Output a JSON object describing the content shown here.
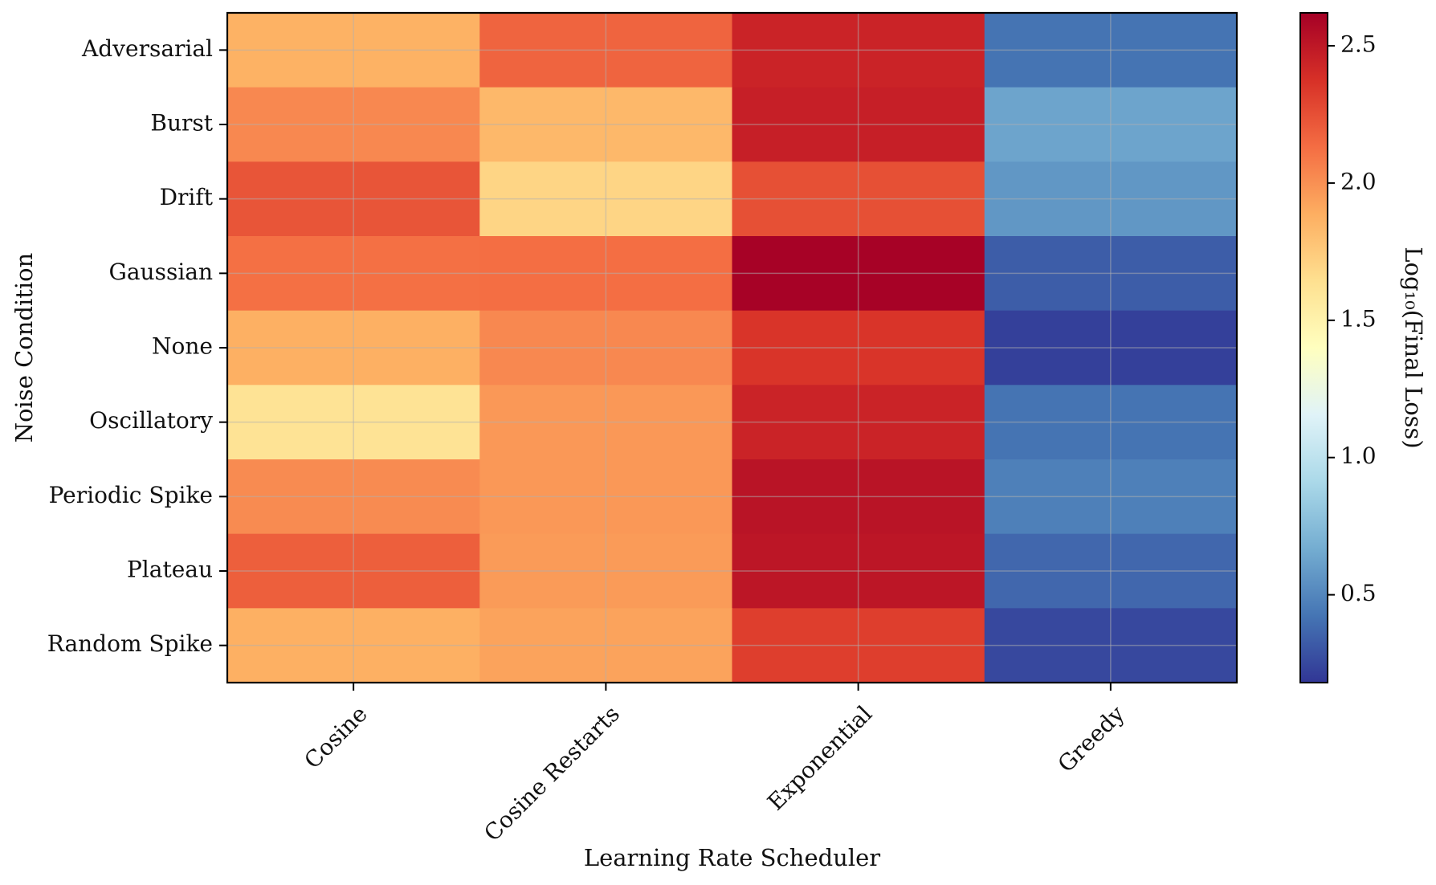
{
  "chart_data": {
    "type": "heatmap",
    "title": "",
    "xlabel": "Learning Rate Scheduler",
    "ylabel": "Noise Condition",
    "x_categories": [
      "Cosine",
      "Cosine Restarts",
      "Exponential",
      "Greedy"
    ],
    "y_categories": [
      "Adversarial",
      "Burst",
      "Drift",
      "Gaussian",
      "None",
      "Oscillatory",
      "Periodic Spike",
      "Plateau",
      "Random Spike"
    ],
    "values": [
      [
        1.87,
        2.17,
        2.44,
        0.42
      ],
      [
        2.03,
        1.84,
        2.46,
        0.63
      ],
      [
        2.23,
        1.7,
        2.25,
        0.57
      ],
      [
        2.12,
        2.13,
        2.61,
        0.33
      ],
      [
        1.88,
        2.03,
        2.36,
        0.22
      ],
      [
        1.62,
        1.97,
        2.44,
        0.42
      ],
      [
        2.02,
        1.97,
        2.52,
        0.47
      ],
      [
        2.19,
        1.96,
        2.51,
        0.37
      ],
      [
        1.88,
        1.93,
        2.32,
        0.25
      ]
    ],
    "colormap": "RdYlBu_r",
    "colorbar": {
      "label": "Log₁₀(Final Loss)",
      "min": 0.18,
      "max": 2.62,
      "ticks": [
        0.5,
        1.0,
        1.5,
        2.0,
        2.5
      ],
      "tick_labels": [
        "0.5",
        "1.0",
        "1.5",
        "2.0",
        "2.5"
      ]
    },
    "grid": true
  }
}
